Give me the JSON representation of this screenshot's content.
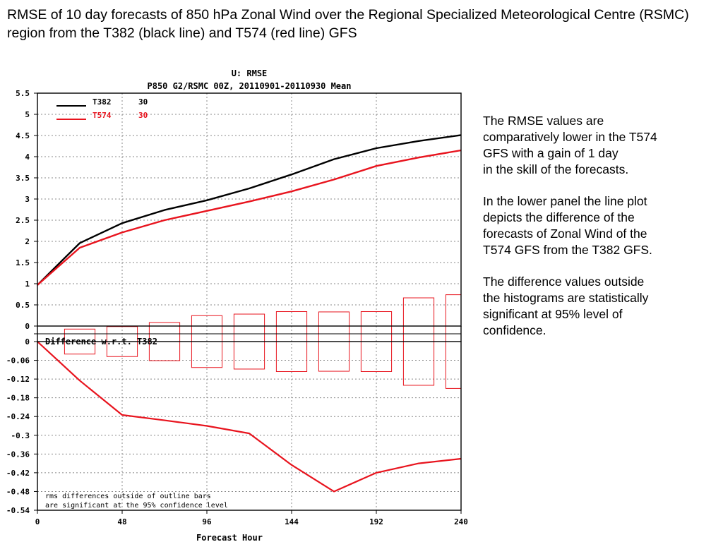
{
  "slide": {
    "title": "RMSE of 10 day forecasts of 850 hPa Zonal Wind over the Regional Specialized Meteorological Centre (RSMC) region from the T382 (black line) and T574 (red line) GFS",
    "notes": [
      "The RMSE values are\ncomparatively lower in the T574\nGFS with a gain of 1 day\nin the skill of the forecasts.",
      "In the lower panel the line plot\ndepicts the difference of the\nforecasts of Zonal Wind of the\nT574 GFS from the T382 GFS.",
      "The difference values outside\nthe histograms are statistically\nsignificant at 95% level of\nconfidence."
    ]
  },
  "chart_data": [
    {
      "type": "line",
      "title": "U: RMSE",
      "subtitle": "P850 G2/RSMC 00Z, 20110901-20110930 Mean",
      "x": [
        0,
        24,
        48,
        72,
        96,
        120,
        144,
        168,
        192,
        216,
        240
      ],
      "xlim": [
        0,
        240
      ],
      "ylim": [
        0,
        5.5
      ],
      "yticks": [
        0,
        0.5,
        1,
        1.5,
        2,
        2.5,
        3,
        3.5,
        4,
        4.5,
        5,
        5.5
      ],
      "grid": true,
      "legend_position": "top-left",
      "series": [
        {
          "name": "T382",
          "count": "30",
          "color": "#000000",
          "values": [
            0.97,
            1.96,
            2.43,
            2.74,
            2.97,
            3.25,
            3.58,
            3.94,
            4.2,
            4.37,
            4.51
          ]
        },
        {
          "name": "T574",
          "count": "30",
          "color": "#e8141e",
          "values": [
            0.97,
            1.85,
            2.21,
            2.5,
            2.72,
            2.94,
            3.18,
            3.46,
            3.78,
            3.98,
            4.15
          ]
        }
      ]
    },
    {
      "type": "line",
      "annotation": "Difference w.r.t. T382",
      "xlabel": "Forecast Hour",
      "x": [
        0,
        24,
        48,
        72,
        96,
        120,
        144,
        168,
        192,
        216,
        240
      ],
      "xticks": [
        0,
        48,
        96,
        144,
        192,
        240
      ],
      "xlim": [
        0,
        240
      ],
      "ylim": [
        -0.54,
        0
      ],
      "yticks": [
        0,
        -0.06,
        -0.12,
        -0.18,
        -0.24,
        -0.3,
        -0.36,
        -0.42,
        -0.48,
        -0.54
      ],
      "ytick_labels": [
        "0",
        "-0.06",
        "-0.12",
        "-0.18",
        "-0.24",
        "-0.3",
        "-0.36",
        "-0.42",
        "-0.48",
        "-0.54"
      ],
      "top_tick_label": "0",
      "grid": true,
      "difference": [
        0,
        -0.125,
        -0.235,
        -0.252,
        -0.27,
        -0.294,
        -0.395,
        -0.48,
        -0.42,
        -0.39,
        -0.375
      ],
      "confidence_bars": [
        {
          "x": 24,
          "value": -0.04
        },
        {
          "x": 48,
          "value": -0.048
        },
        {
          "x": 72,
          "value": -0.061
        },
        {
          "x": 96,
          "value": -0.083
        },
        {
          "x": 120,
          "value": -0.088
        },
        {
          "x": 144,
          "value": -0.096
        },
        {
          "x": 168,
          "value": -0.095
        },
        {
          "x": 192,
          "value": -0.096
        },
        {
          "x": 216,
          "value": -0.14
        },
        {
          "x": 240,
          "value": -0.15
        }
      ],
      "footnote": [
        "rms differences outside of outline bars",
        "are significant at the 95% confidence level"
      ]
    }
  ]
}
